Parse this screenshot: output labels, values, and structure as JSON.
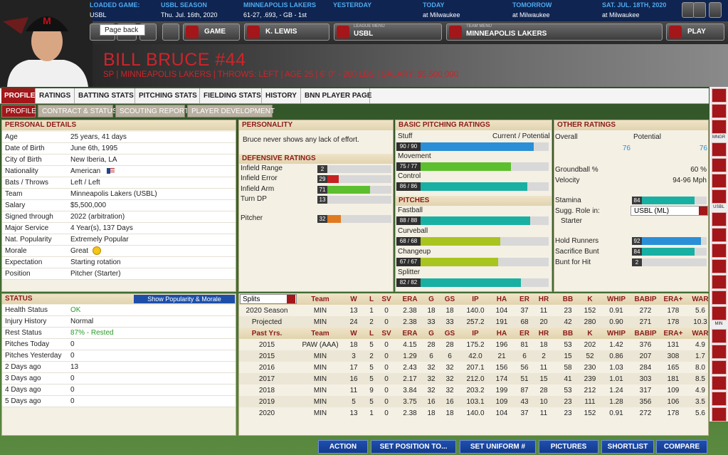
{
  "top_bar": [
    {
      "label": "LOADED GAME:",
      "value": "USBL"
    },
    {
      "label": "USBL SEASON",
      "value": "Thu. Jul. 16th, 2020"
    },
    {
      "label": "MINNEAPOLIS LAKERS",
      "value": "61-27, .693, - GB - 1st"
    },
    {
      "label": "YESTERDAY"
    },
    {
      "label": "TODAY",
      "value": "at Milwaukee"
    },
    {
      "label": "TOMORROW",
      "value": "at Milwaukee"
    },
    {
      "label": "SAT. JUL. 18TH, 2020",
      "value": "at Milwaukee"
    }
  ],
  "nav": {
    "tooltip": "Page back",
    "buttons": [
      {
        "label": "GAME"
      },
      {
        "label": "K. LEWIS"
      },
      {
        "caption": "LEAGUE MENU",
        "label": "USBL"
      },
      {
        "caption": "TEAM MENU",
        "label": "MINNEAPOLIS LAKERS"
      },
      {
        "label": "PLAY"
      }
    ]
  },
  "player": {
    "name": "BILL BRUCE #44",
    "subtitle": "SP | MINNEAPOLIS LAKERS | THROWS: LEFT | AGE 25 | 6' 0\" - 200 LBS | SALARY: $5,500,000"
  },
  "tabs": [
    "PROFILE",
    "RATINGS",
    "BATTING STATS",
    "PITCHING STATS",
    "FIELDING STATS",
    "HISTORY",
    "BNN PLAYER PAGE"
  ],
  "subtabs": [
    "PROFILE",
    "CONTRACT & STATUS",
    "SCOUTING REPORTS",
    "PLAYER DEVELOPMENT"
  ],
  "personal_details": {
    "title": "PERSONAL DETAILS",
    "rows": [
      [
        "Age",
        "25 years, 41 days"
      ],
      [
        "Date of Birth",
        "June 6th, 1995"
      ],
      [
        "City of Birth",
        "New Iberia, LA"
      ],
      [
        "Nationality",
        "American"
      ],
      [
        "Bats / Throws",
        "Left / Left"
      ],
      [
        "Team",
        "Minneapolis Lakers (USBL)"
      ],
      [
        "Salary",
        "$5,500,000"
      ],
      [
        "Signed through",
        "2022 (arbitration)"
      ],
      [
        "Major Service",
        "4 Year(s), 137 Days"
      ],
      [
        "Nat. Popularity",
        "Extremely Popular"
      ],
      [
        "Morale",
        "Great"
      ],
      [
        "Expectation",
        "Starting rotation"
      ],
      [
        "Position",
        "Pitcher (Starter)"
      ]
    ]
  },
  "status": {
    "title": "STATUS",
    "button": "Show Popularity & Morale",
    "rows": [
      [
        "Health Status",
        "OK"
      ],
      [
        "Injury History",
        "Normal"
      ],
      [
        "Rest Status",
        "87% - Rested"
      ],
      [
        "Pitches Today",
        "0"
      ],
      [
        "Pitches Yesterday",
        "0"
      ],
      [
        "2 Days ago",
        "13"
      ],
      [
        "3 Days ago",
        "0"
      ],
      [
        "4 Days ago",
        "0"
      ],
      [
        "5 Days ago",
        "0"
      ]
    ]
  },
  "personality": {
    "title": "PERSONALITY",
    "text": "Bruce never shows any lack of effort."
  },
  "defensive_ratings": {
    "title": "DEFENSIVE RATINGS",
    "rows": [
      {
        "label": "Infield Range",
        "value": 2
      },
      {
        "label": "Infield Error",
        "value": 29
      },
      {
        "label": "Infield Arm",
        "value": 71
      },
      {
        "label": "Turn DP",
        "value": 13
      },
      {
        "label": "Pitcher",
        "value": 32
      }
    ]
  },
  "pitching_ratings": {
    "title": "BASIC PITCHING RATINGS",
    "column_label": "Current / Potential",
    "rows": [
      {
        "label": "Stuff",
        "value": 90,
        "value_label": "90 / 90"
      },
      {
        "label": "Movement",
        "value": 75,
        "value_label": "75 / 77"
      },
      {
        "label": "Control",
        "value": 86,
        "value_label": "86 / 86"
      }
    ],
    "pitches_title": "PITCHES",
    "pitches": [
      {
        "label": "Fastball",
        "value": 88,
        "value_label": "88 / 88"
      },
      {
        "label": "Curveball",
        "value": 68,
        "value_label": "68 / 68"
      },
      {
        "label": "Changeup",
        "value": 67,
        "value_label": "67 / 67"
      },
      {
        "label": "Splitter",
        "value": 82,
        "value_label": "82 / 82"
      }
    ]
  },
  "other_ratings": {
    "title": "OTHER RATINGS",
    "overall_label": "Overall",
    "potential_label": "Potential",
    "overall": 76,
    "potential": 76,
    "info": [
      [
        "Groundball %",
        "60 %"
      ],
      [
        "Velocity",
        "94-96 Mph"
      ]
    ],
    "stamina": {
      "label": "Stamina",
      "value": 84
    },
    "role_label": "Sugg. Role in:",
    "role_league": "USBL (ML)",
    "role": "Starter",
    "bars": [
      {
        "label": "Hold Runners",
        "value": 92
      },
      {
        "label": "Sacrifice Bunt",
        "value": 84
      },
      {
        "label": "Bunt for Hit",
        "value": 2
      }
    ]
  },
  "stats": {
    "splits": "Splits",
    "headers": [
      "Team",
      "W",
      "L",
      "SV",
      "ERA",
      "G",
      "GS",
      "IP",
      "HA",
      "ER",
      "HR",
      "BB",
      "K",
      "WHIP",
      "BABIP",
      "ERA+",
      "WAR"
    ],
    "rows": [
      [
        "2020 Season",
        "MIN",
        "13",
        "1",
        "0",
        "2.38",
        "18",
        "18",
        "140.0",
        "104",
        "37",
        "11",
        "23",
        "152",
        "0.91",
        "272",
        "178",
        "5.6"
      ],
      [
        "Projected",
        "MIN",
        "24",
        "2",
        "0",
        "2.38",
        "33",
        "33",
        "257.2",
        "191",
        "68",
        "20",
        "42",
        "280",
        "0.90",
        "271",
        "178",
        "10.3"
      ]
    ],
    "past_label": "Past Yrs.",
    "past_rows": [
      [
        "2015",
        "PAW (AAA)",
        "18",
        "5",
        "0",
        "4.15",
        "28",
        "28",
        "175.2",
        "196",
        "81",
        "18",
        "53",
        "202",
        "1.42",
        "376",
        "131",
        "4.9"
      ],
      [
        "2015",
        "MIN",
        "3",
        "2",
        "0",
        "1.29",
        "6",
        "6",
        "42.0",
        "21",
        "6",
        "2",
        "15",
        "52",
        "0.86",
        "207",
        "308",
        "1.7"
      ],
      [
        "2016",
        "MIN",
        "17",
        "5",
        "0",
        "2.43",
        "32",
        "32",
        "207.1",
        "156",
        "56",
        "11",
        "58",
        "230",
        "1.03",
        "284",
        "165",
        "8.0"
      ],
      [
        "2017",
        "MIN",
        "16",
        "5",
        "0",
        "2.17",
        "32",
        "32",
        "212.0",
        "174",
        "51",
        "15",
        "41",
        "239",
        "1.01",
        "303",
        "181",
        "8.5"
      ],
      [
        "2018",
        "MIN",
        "11",
        "9",
        "0",
        "3.84",
        "32",
        "32",
        "203.2",
        "199",
        "87",
        "28",
        "53",
        "212",
        "1.24",
        "317",
        "109",
        "4.9"
      ],
      [
        "2019",
        "MIN",
        "5",
        "5",
        "0",
        "3.75",
        "16",
        "16",
        "103.1",
        "109",
        "43",
        "10",
        "23",
        "111",
        "1.28",
        "356",
        "106",
        "3.5"
      ],
      [
        "2020",
        "MIN",
        "13",
        "1",
        "0",
        "2.38",
        "18",
        "18",
        "140.0",
        "104",
        "37",
        "11",
        "23",
        "152",
        "0.91",
        "272",
        "178",
        "5.6"
      ]
    ]
  },
  "sidebar_labels": [
    "MNGR",
    "USBL",
    "MIN"
  ],
  "bottom_buttons": [
    "ACTION",
    "SET POSITION TO...",
    "SET UNIFORM #",
    "PICTURES",
    "SHORTLIST",
    "COMPARE"
  ]
}
